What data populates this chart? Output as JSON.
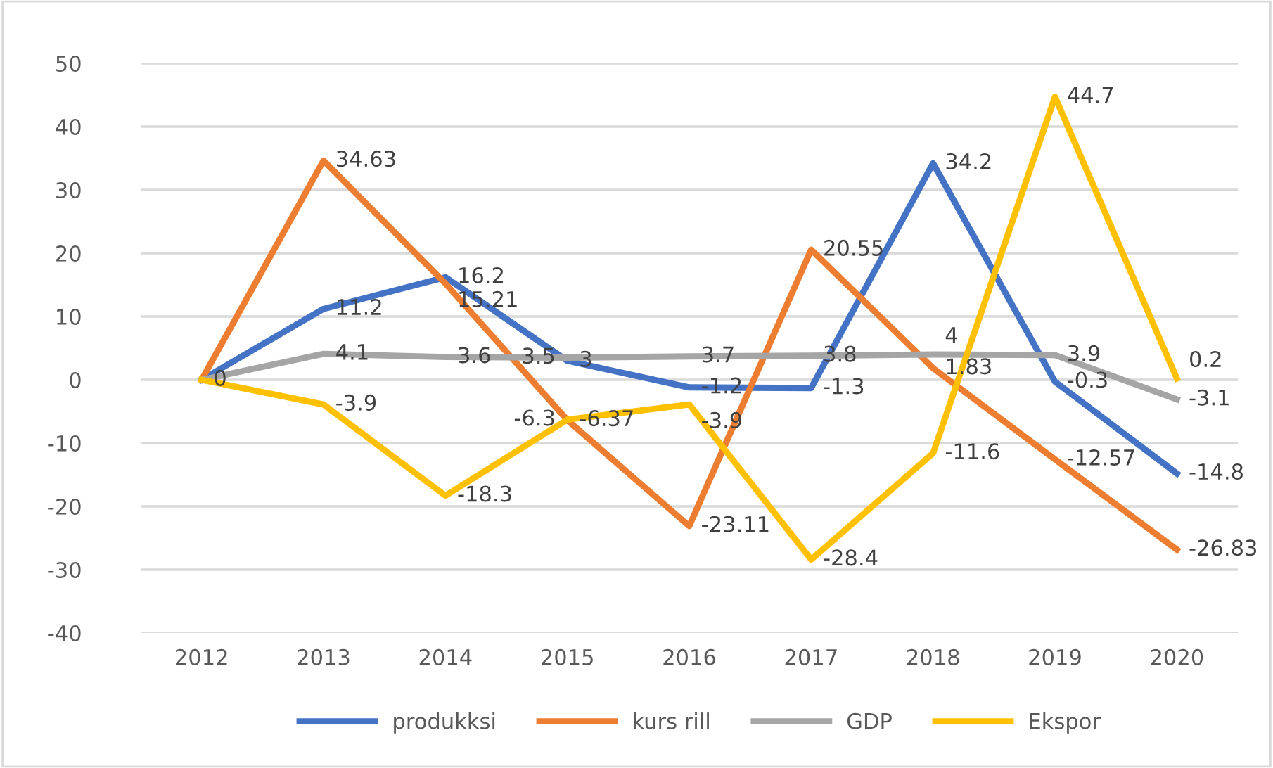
{
  "chart_data": {
    "type": "line",
    "categories": [
      "2012",
      "2013",
      "2014",
      "2015",
      "2016",
      "2017",
      "2018",
      "2019",
      "2020"
    ],
    "series": [
      {
        "name": "produkksi",
        "color": "#4472c4",
        "values": [
          0,
          11.2,
          16.2,
          3,
          -1.2,
          -1.3,
          34.2,
          -0.3,
          -14.8
        ],
        "value_labels": [
          "0",
          "11.2",
          "16.2",
          "3",
          "-1.2",
          "-1.3",
          "34.2",
          "-0.3",
          "-14.8"
        ]
      },
      {
        "name": "kurs rill",
        "color": "#ed7d31",
        "values": [
          0,
          34.63,
          15.21,
          -6.37,
          -23.11,
          20.55,
          1.83,
          -12.57,
          -26.83
        ],
        "value_labels": [
          null,
          "34.63",
          "15.21",
          "-6.37",
          "-23.11",
          "20.55",
          "1.83",
          "-12.57",
          "-26.83"
        ]
      },
      {
        "name": "GDP",
        "color": "#a5a5a5",
        "values": [
          0,
          4.1,
          3.6,
          3.5,
          3.7,
          3.8,
          4,
          3.9,
          -3.1
        ],
        "value_labels": [
          null,
          "4.1",
          "3.6",
          "3.5",
          "3.7",
          "3.8",
          "4",
          "3.9",
          "-3.1"
        ]
      },
      {
        "name": "Ekspor",
        "color": "#ffc000",
        "values": [
          0,
          -3.9,
          -18.3,
          -6.3,
          -3.9,
          -28.4,
          -11.6,
          44.7,
          0.2
        ],
        "value_labels": [
          null,
          "-3.9",
          "-18.3",
          "-6.3",
          "-3.9",
          "-28.4",
          "-11.6",
          "44.7",
          "0.2"
        ]
      }
    ],
    "ylim": [
      -40,
      50
    ],
    "yticks": [
      -40,
      -30,
      -20,
      -10,
      0,
      10,
      20,
      30,
      40,
      50
    ],
    "grid": "y",
    "legend": "bottom",
    "marker": "none",
    "line_style": "solid"
  }
}
